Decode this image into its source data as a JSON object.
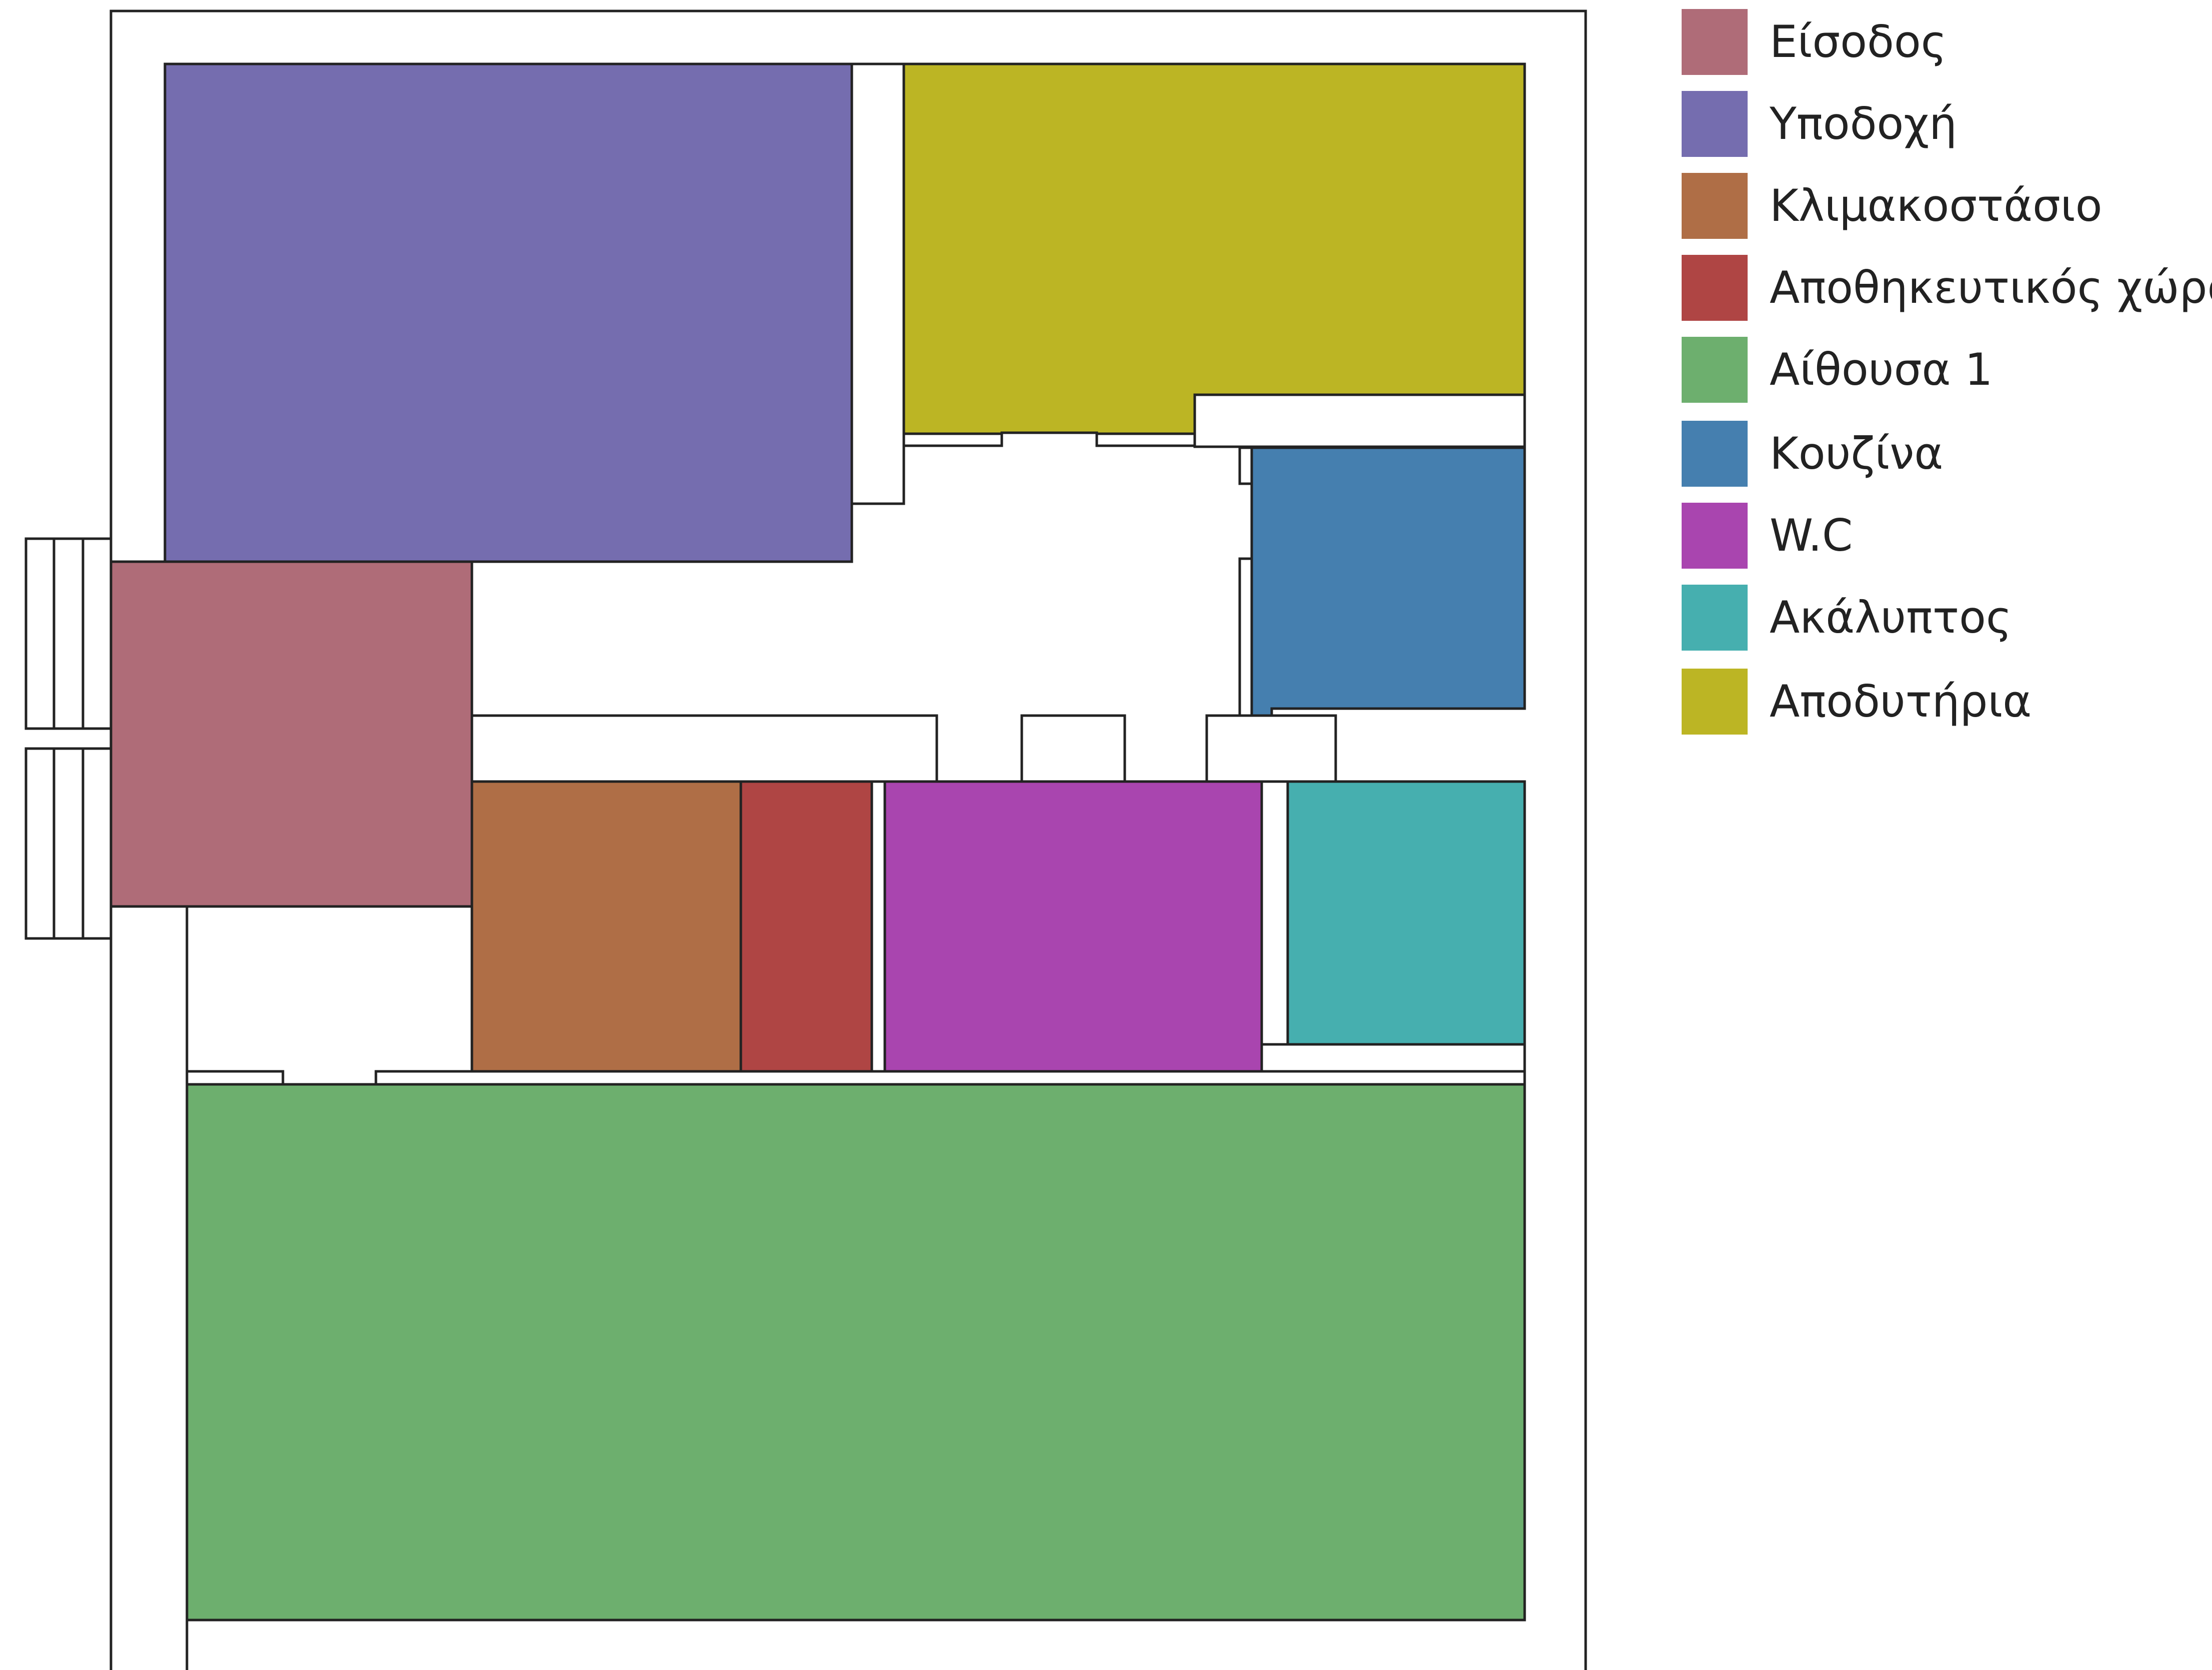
{
  "rooms": {
    "entrance": "#af6c78",
    "reception": "#756daf",
    "staircase": "#af6e46",
    "storage": "#af4544",
    "hall_1": "#6daf6e",
    "kitchen": "#457faf",
    "wc": "#a945af",
    "uncovered": "#46afaf",
    "changing_rooms": "#bcb524"
  },
  "legend": [
    {
      "label": "Είσοδος",
      "color": "#af6c78"
    },
    {
      "label": "Υποδοχή",
      "color": "#756daf"
    },
    {
      "label": "Κλιμακοστάσιο",
      "color": "#af6e46"
    },
    {
      "label": "Αποθηκευτικός χώρος",
      "color": "#af4544"
    },
    {
      "label": "Αίθουσα 1",
      "color": "#6daf6e"
    },
    {
      "label": "Κουζίνα",
      "color": "#457faf"
    },
    {
      "label": "W.C",
      "color": "#a945af"
    },
    {
      "label": "Ακάλυπτος",
      "color": "#46afaf"
    },
    {
      "label": "Αποδυτήρια",
      "color": "#bcb524"
    }
  ]
}
